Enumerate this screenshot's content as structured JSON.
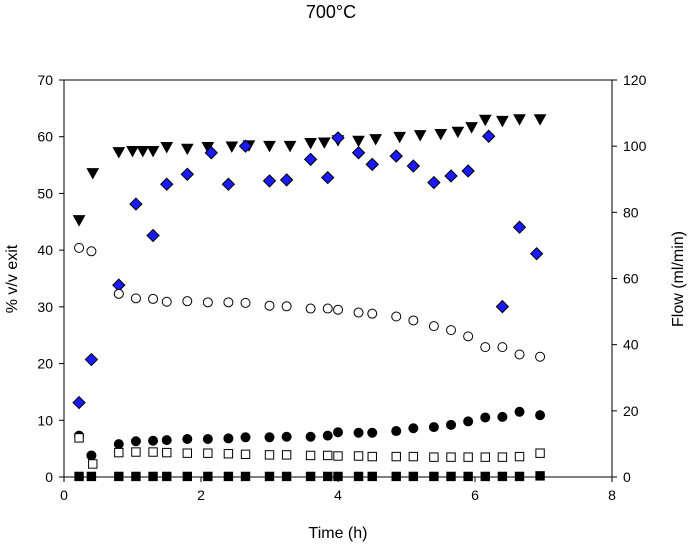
{
  "chart_data": {
    "type": "scatter",
    "title": "700°C",
    "xlabel": "Time (h)",
    "ylabel": "% v/v exit",
    "y2label": "Flow (ml/min)",
    "xlim": [
      0,
      8
    ],
    "ylim": [
      0,
      70
    ],
    "y2lim": [
      0,
      120
    ],
    "xticks": [
      0,
      2,
      4,
      6,
      8
    ],
    "yticks": [
      0,
      10,
      20,
      30,
      40,
      50,
      60,
      70
    ],
    "y2ticks": [
      0,
      20,
      40,
      60,
      80,
      100,
      120
    ],
    "grid": false,
    "series": [
      {
        "marker": "triangle-down-filled",
        "color": "#000000",
        "axis": "left",
        "x": [
          0.22,
          0.42,
          0.8,
          1.0,
          1.15,
          1.3,
          1.5,
          1.8,
          2.1,
          2.45,
          2.7,
          3.0,
          3.3,
          3.6,
          3.8,
          4.0,
          4.3,
          4.55,
          4.9,
          5.2,
          5.5,
          5.75,
          5.95,
          6.15,
          6.4,
          6.65,
          6.95
        ],
        "y": [
          45.3,
          53.6,
          57.3,
          57.5,
          57.5,
          57.5,
          58.2,
          57.9,
          58.2,
          58.3,
          58.5,
          58.4,
          58.4,
          58.9,
          59.0,
          59.4,
          59.3,
          59.6,
          60.0,
          60.3,
          60.5,
          60.9,
          61.7,
          63.0,
          62.8,
          63.1,
          63.1
        ]
      },
      {
        "marker": "diamond-filled",
        "color": "#1a1aff",
        "axis": "right",
        "x": [
          0.22,
          0.4,
          0.8,
          1.05,
          1.3,
          1.5,
          1.8,
          2.15,
          2.4,
          2.65,
          3.0,
          3.25,
          3.6,
          3.85,
          4.0,
          4.3,
          4.5,
          4.85,
          5.1,
          5.4,
          5.65,
          5.9,
          6.2,
          6.4,
          6.65,
          6.9
        ],
        "y": [
          22.5,
          35.5,
          58.0,
          82.5,
          73.0,
          88.5,
          91.5,
          98.0,
          88.5,
          100.0,
          89.5,
          89.8,
          96.0,
          90.5,
          102.5,
          98.0,
          94.5,
          97.0,
          94.0,
          89.0,
          91.0,
          92.5,
          103.0,
          51.5,
          75.5,
          67.5
        ]
      },
      {
        "marker": "circle-open",
        "color": "#000000",
        "axis": "left",
        "x": [
          0.22,
          0.4,
          0.8,
          1.05,
          1.3,
          1.5,
          1.8,
          2.1,
          2.4,
          2.65,
          3.0,
          3.25,
          3.6,
          3.85,
          4.0,
          4.3,
          4.5,
          4.85,
          5.1,
          5.4,
          5.65,
          5.9,
          6.15,
          6.4,
          6.65,
          6.95
        ],
        "y": [
          40.4,
          39.8,
          32.3,
          31.5,
          31.4,
          30.9,
          31.0,
          30.8,
          30.8,
          30.7,
          30.2,
          30.1,
          29.7,
          29.7,
          29.5,
          29.0,
          28.8,
          28.3,
          27.6,
          26.6,
          25.9,
          24.8,
          22.9,
          22.9,
          21.6,
          21.2
        ]
      },
      {
        "marker": "circle-filled",
        "color": "#000000",
        "axis": "left",
        "x": [
          0.22,
          0.4,
          0.8,
          1.05,
          1.3,
          1.5,
          1.8,
          2.1,
          2.4,
          2.65,
          3.0,
          3.25,
          3.6,
          3.85,
          4.0,
          4.3,
          4.5,
          4.85,
          5.1,
          5.4,
          5.65,
          5.9,
          6.15,
          6.4,
          6.65,
          6.95
        ],
        "y": [
          7.3,
          3.8,
          5.8,
          6.3,
          6.4,
          6.5,
          6.7,
          6.7,
          6.8,
          7.0,
          7.0,
          7.1,
          7.1,
          7.3,
          7.9,
          7.8,
          7.8,
          8.1,
          8.6,
          8.8,
          9.2,
          9.8,
          10.5,
          10.6,
          11.5,
          10.9
        ]
      },
      {
        "marker": "square-open",
        "color": "#000000",
        "axis": "left",
        "x": [
          0.22,
          0.42,
          0.8,
          1.05,
          1.3,
          1.5,
          1.8,
          2.1,
          2.4,
          2.65,
          3.0,
          3.25,
          3.6,
          3.85,
          4.0,
          4.3,
          4.5,
          4.85,
          5.1,
          5.4,
          5.65,
          5.9,
          6.15,
          6.4,
          6.65,
          6.95
        ],
        "y": [
          6.9,
          2.3,
          4.3,
          4.4,
          4.4,
          4.3,
          4.2,
          4.2,
          4.1,
          4.0,
          3.9,
          3.9,
          3.8,
          3.8,
          3.7,
          3.7,
          3.6,
          3.6,
          3.6,
          3.5,
          3.5,
          3.5,
          3.5,
          3.5,
          3.6,
          4.2
        ]
      },
      {
        "marker": "square-filled",
        "color": "#000000",
        "axis": "left",
        "x": [
          0.22,
          0.4,
          0.8,
          1.05,
          1.3,
          1.5,
          1.8,
          2.1,
          2.4,
          2.65,
          3.0,
          3.25,
          3.6,
          3.85,
          4.0,
          4.3,
          4.5,
          4.85,
          5.1,
          5.4,
          5.65,
          5.9,
          6.15,
          6.4,
          6.65,
          6.95
        ],
        "y": [
          0.1,
          0.1,
          0.1,
          0.1,
          0.1,
          0.1,
          0.1,
          0.1,
          0.1,
          0.1,
          0.1,
          0.1,
          0.1,
          0.1,
          0.1,
          0.1,
          0.1,
          0.1,
          0.1,
          0.1,
          0.1,
          0.1,
          0.1,
          0.1,
          0.1,
          0.2
        ]
      }
    ]
  }
}
